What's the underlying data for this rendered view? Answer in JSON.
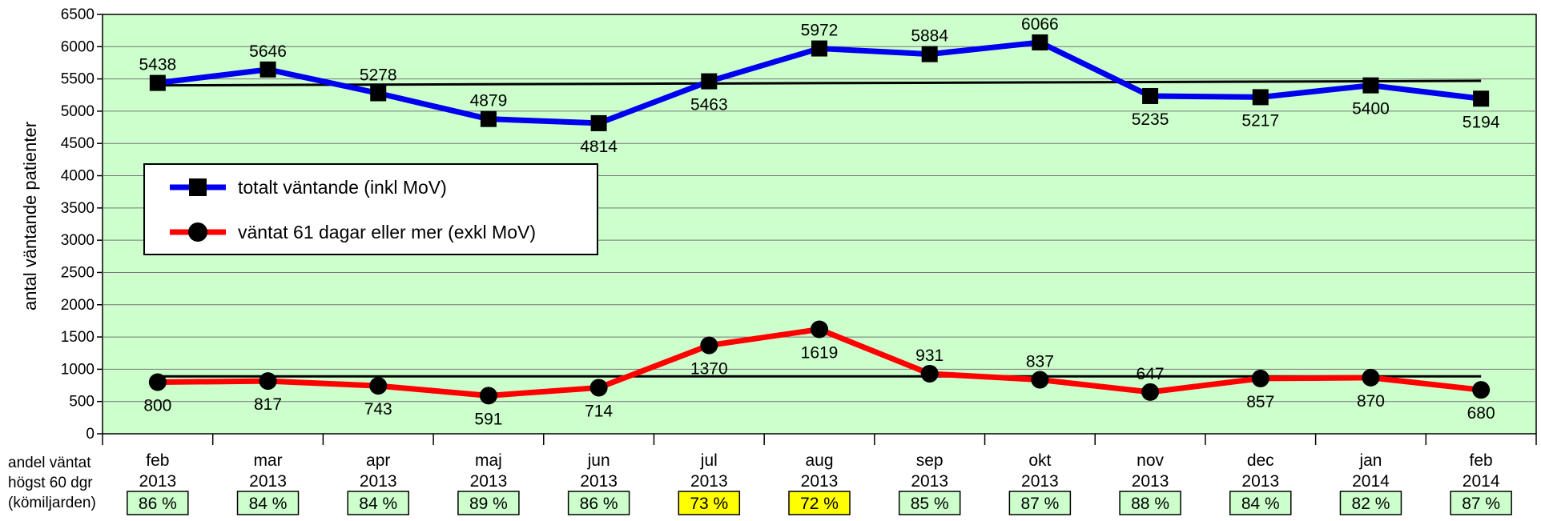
{
  "chart_data": {
    "type": "line",
    "ylabel": "antal väntande patienter",
    "ylim": [
      0,
      6500
    ],
    "yticks": [
      0,
      500,
      1000,
      1500,
      2000,
      2500,
      3000,
      3500,
      4000,
      4500,
      5000,
      5500,
      6000,
      6500
    ],
    "grid": true,
    "legend_position": "left-middle",
    "categories": [
      {
        "month": "feb",
        "year": "2013"
      },
      {
        "month": "mar",
        "year": "2013"
      },
      {
        "month": "apr",
        "year": "2013"
      },
      {
        "month": "maj",
        "year": "2013"
      },
      {
        "month": "jun",
        "year": "2013"
      },
      {
        "month": "jul",
        "year": "2013"
      },
      {
        "month": "aug",
        "year": "2013"
      },
      {
        "month": "sep",
        "year": "2013"
      },
      {
        "month": "okt",
        "year": "2013"
      },
      {
        "month": "nov",
        "year": "2013"
      },
      {
        "month": "dec",
        "year": "2013"
      },
      {
        "month": "jan",
        "year": "2014"
      },
      {
        "month": "feb",
        "year": "2014"
      }
    ],
    "series": [
      {
        "name": "totalt väntande (inkl MoV)",
        "color": "#0000ee",
        "marker": "square",
        "values": [
          5438,
          5646,
          5278,
          4879,
          4814,
          5463,
          5972,
          5884,
          6066,
          5235,
          5217,
          5400,
          5194
        ],
        "label_pos": [
          "above",
          "above",
          "above",
          "above",
          "below",
          "below",
          "above",
          "above",
          "above",
          "below",
          "below",
          "below",
          "below"
        ]
      },
      {
        "name": "väntat 61 dagar eller mer (exkl MoV)",
        "color": "#ff0000",
        "marker": "circle",
        "values": [
          800,
          817,
          743,
          591,
          714,
          1370,
          1619,
          931,
          837,
          647,
          857,
          870,
          680
        ],
        "label_pos": [
          "below",
          "below",
          "below",
          "below",
          "below",
          "below",
          "below",
          "above",
          "above",
          "above",
          "below",
          "below",
          "below"
        ]
      }
    ],
    "trend_lines": [
      {
        "from": 5400,
        "to": 5470
      },
      {
        "from": 890,
        "to": 890
      }
    ],
    "bottom_table": {
      "row_label": [
        "andel väntat",
        "högst 60 dgr",
        "(kömiljarden)"
      ],
      "values": [
        "86 %",
        "84 %",
        "84 %",
        "89 %",
        "86 %",
        "73 %",
        "72 %",
        "85 %",
        "87 %",
        "88 %",
        "84 %",
        "82 %",
        "87 %"
      ],
      "highlight": [
        false,
        false,
        false,
        false,
        false,
        true,
        true,
        false,
        false,
        false,
        false,
        false,
        false
      ],
      "normal_color": "#ccffcc",
      "highlight_color": "#ffff00"
    },
    "plot_background": "#ccffcc"
  }
}
